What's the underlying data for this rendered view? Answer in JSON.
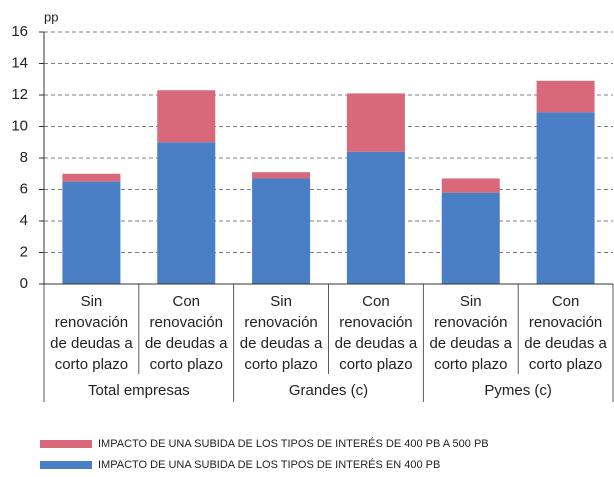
{
  "chart_data": {
    "type": "stacked-bar",
    "y_unit": "pp",
    "categories": [
      [
        "Sin",
        "renovación",
        "de deudas a",
        "corto plazo"
      ],
      [
        "Con",
        "renovación",
        "de deudas a",
        "corto plazo"
      ],
      [
        "Sin",
        "renovación",
        "de deudas a",
        "corto plazo"
      ],
      [
        "Con",
        "renovación",
        "de deudas a",
        "corto plazo"
      ],
      [
        "Sin",
        "renovación",
        "de deudas a",
        "corto plazo"
      ],
      [
        "Con",
        "renovación",
        "de deudas a",
        "corto plazo"
      ]
    ],
    "groups": [
      "Total empresas",
      "Grandes (c)",
      "Pymes (c)"
    ],
    "series": [
      {
        "name": "IMPACTO DE UNA SUBIDA DE LOS TIPOS DE INTERÉS EN 400 PB",
        "color": "#4a7fc5",
        "values": [
          6.5,
          9.0,
          6.7,
          8.4,
          5.8,
          10.9
        ]
      },
      {
        "name": "IMPACTO DE UNA SUBIDA DE LOS TIPOS DE INTERÉS DE 400 PB A 500 PB",
        "color": "#d8697b",
        "values": [
          0.5,
          3.3,
          0.4,
          3.7,
          0.9,
          2.0
        ]
      }
    ],
    "ylim": [
      0,
      16
    ],
    "yticks": [
      0,
      2,
      4,
      6,
      8,
      10,
      12,
      14,
      16
    ],
    "grid": true
  }
}
